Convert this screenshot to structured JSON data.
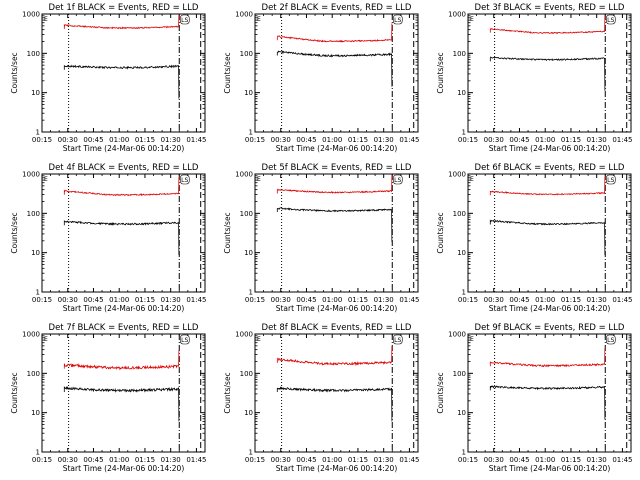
{
  "page": {
    "background": "#ffffff"
  },
  "colors": {
    "events": "#000000",
    "lld": "#dd0000",
    "axis": "#000000"
  },
  "chart_data": [
    {
      "type": "line",
      "title": "Det 1f BLACK = Events, RED = LLD",
      "ylabel": "Counts/sec",
      "xlabel": "Start Time (24-Mar-06 00:14:20)",
      "x_ticks": [
        "00:15",
        "00:30",
        "00:45",
        "01:00",
        "01:15",
        "01:30",
        "01:45"
      ],
      "y_ticks": [
        "1",
        "10",
        "100",
        "1000"
      ],
      "ylim": [
        1,
        1000
      ],
      "yscale": "log",
      "series": [
        {
          "color": "#000000",
          "level": 47,
          "start_level": 48,
          "variability": 0.05
        },
        {
          "color": "#dd0000",
          "level": 480,
          "start_level": 520,
          "variability": 0.035
        }
      ],
      "legend_mark": "LS"
    },
    {
      "type": "line",
      "title": "Det 2f BLACK = Events, RED = LLD",
      "ylabel": "Counts/sec",
      "xlabel": "Start Time (24-Mar-06 00:14:20)",
      "x_ticks": [
        "00:15",
        "00:30",
        "00:45",
        "01:00",
        "01:15",
        "01:30",
        "01:45"
      ],
      "y_ticks": [
        "1",
        "10",
        "100",
        "1000"
      ],
      "ylim": [
        1,
        1000
      ],
      "yscale": "log",
      "series": [
        {
          "color": "#000000",
          "level": 95,
          "start_level": 110,
          "variability": 0.05
        },
        {
          "color": "#dd0000",
          "level": 220,
          "start_level": 270,
          "variability": 0.04
        }
      ],
      "legend_mark": "LS"
    },
    {
      "type": "line",
      "title": "Det 3f BLACK = Events, RED = LLD",
      "ylabel": "Counts/sec",
      "xlabel": "Start Time (24-Mar-06 00:14:20)",
      "x_ticks": [
        "00:15",
        "00:30",
        "00:45",
        "01:00",
        "01:15",
        "01:30",
        "01:45"
      ],
      "y_ticks": [
        "1",
        "10",
        "100",
        "1000"
      ],
      "ylim": [
        1,
        1000
      ],
      "yscale": "log",
      "series": [
        {
          "color": "#000000",
          "level": 75,
          "start_level": 78,
          "variability": 0.04
        },
        {
          "color": "#dd0000",
          "level": 360,
          "start_level": 420,
          "variability": 0.03
        }
      ],
      "legend_mark": "LS"
    },
    {
      "type": "line",
      "title": "Det 4f BLACK = Events, RED = LLD",
      "ylabel": "Counts/sec",
      "xlabel": "Start Time (24-Mar-06 00:14:20)",
      "x_ticks": [
        "00:15",
        "00:30",
        "00:45",
        "01:00",
        "01:15",
        "01:30",
        "01:45"
      ],
      "y_ticks": [
        "1",
        "10",
        "100",
        "1000"
      ],
      "ylim": [
        1,
        1000
      ],
      "yscale": "log",
      "series": [
        {
          "color": "#000000",
          "level": 58,
          "start_level": 62,
          "variability": 0.05
        },
        {
          "color": "#dd0000",
          "level": 320,
          "start_level": 370,
          "variability": 0.035
        }
      ],
      "legend_mark": "LS"
    },
    {
      "type": "line",
      "title": "Det 5f BLACK = Events, RED = LLD",
      "ylabel": "Counts/sec",
      "xlabel": "Start Time (24-Mar-06 00:14:20)",
      "x_ticks": [
        "00:15",
        "00:30",
        "00:45",
        "01:00",
        "01:15",
        "01:30",
        "01:45"
      ],
      "y_ticks": [
        "1",
        "10",
        "100",
        "1000"
      ],
      "ylim": [
        1,
        1000
      ],
      "yscale": "log",
      "series": [
        {
          "color": "#000000",
          "level": 125,
          "start_level": 135,
          "variability": 0.04
        },
        {
          "color": "#dd0000",
          "level": 370,
          "start_level": 400,
          "variability": 0.035
        }
      ],
      "legend_mark": "LS"
    },
    {
      "type": "line",
      "title": "Det 6f BLACK = Events, RED = LLD",
      "ylabel": "Counts/sec",
      "xlabel": "Start Time (24-Mar-06 00:14:20)",
      "x_ticks": [
        "00:15",
        "00:30",
        "00:45",
        "01:00",
        "01:15",
        "01:30",
        "01:45"
      ],
      "y_ticks": [
        "1",
        "10",
        "100",
        "1000"
      ],
      "ylim": [
        1,
        1000
      ],
      "yscale": "log",
      "series": [
        {
          "color": "#000000",
          "level": 58,
          "start_level": 65,
          "variability": 0.04
        },
        {
          "color": "#dd0000",
          "level": 330,
          "start_level": 360,
          "variability": 0.03
        }
      ],
      "legend_mark": "LS"
    },
    {
      "type": "line",
      "title": "Det 7f BLACK = Events, RED = LLD",
      "ylabel": "Counts/sec",
      "xlabel": "Start Time (24-Mar-06 00:14:20)",
      "x_ticks": [
        "00:15",
        "00:30",
        "00:45",
        "01:00",
        "01:15",
        "01:30",
        "01:45"
      ],
      "y_ticks": [
        "1",
        "10",
        "100",
        "1000"
      ],
      "ylim": [
        1,
        1000
      ],
      "yscale": "log",
      "series": [
        {
          "color": "#000000",
          "level": 40,
          "start_level": 42,
          "variability": 0.07
        },
        {
          "color": "#dd0000",
          "level": 150,
          "start_level": 165,
          "variability": 0.08
        }
      ],
      "legend_mark": "LS"
    },
    {
      "type": "line",
      "title": "Det 8f BLACK = Events, RED = LLD",
      "ylabel": "Counts/sec",
      "xlabel": "Start Time (24-Mar-06 00:14:20)",
      "x_ticks": [
        "00:15",
        "00:30",
        "00:45",
        "01:00",
        "01:15",
        "01:30",
        "01:45"
      ],
      "y_ticks": [
        "1",
        "10",
        "100",
        "1000"
      ],
      "ylim": [
        1,
        1000
      ],
      "yscale": "log",
      "series": [
        {
          "color": "#000000",
          "level": 40,
          "start_level": 42,
          "variability": 0.06
        },
        {
          "color": "#dd0000",
          "level": 190,
          "start_level": 230,
          "variability": 0.06
        }
      ],
      "legend_mark": "LS"
    },
    {
      "type": "line",
      "title": "Det 9f BLACK = Events, RED = LLD",
      "ylabel": "Counts/sec",
      "xlabel": "Start Time (24-Mar-06 00:14:20)",
      "x_ticks": [
        "00:15",
        "00:30",
        "00:45",
        "01:00",
        "01:15",
        "01:30",
        "01:45"
      ],
      "y_ticks": [
        "1",
        "10",
        "100",
        "1000"
      ],
      "ylim": [
        1,
        1000
      ],
      "yscale": "log",
      "series": [
        {
          "color": "#000000",
          "level": 45,
          "start_level": 46,
          "variability": 0.05
        },
        {
          "color": "#dd0000",
          "level": 170,
          "start_level": 190,
          "variability": 0.05
        }
      ],
      "legend_mark": "LS"
    }
  ]
}
